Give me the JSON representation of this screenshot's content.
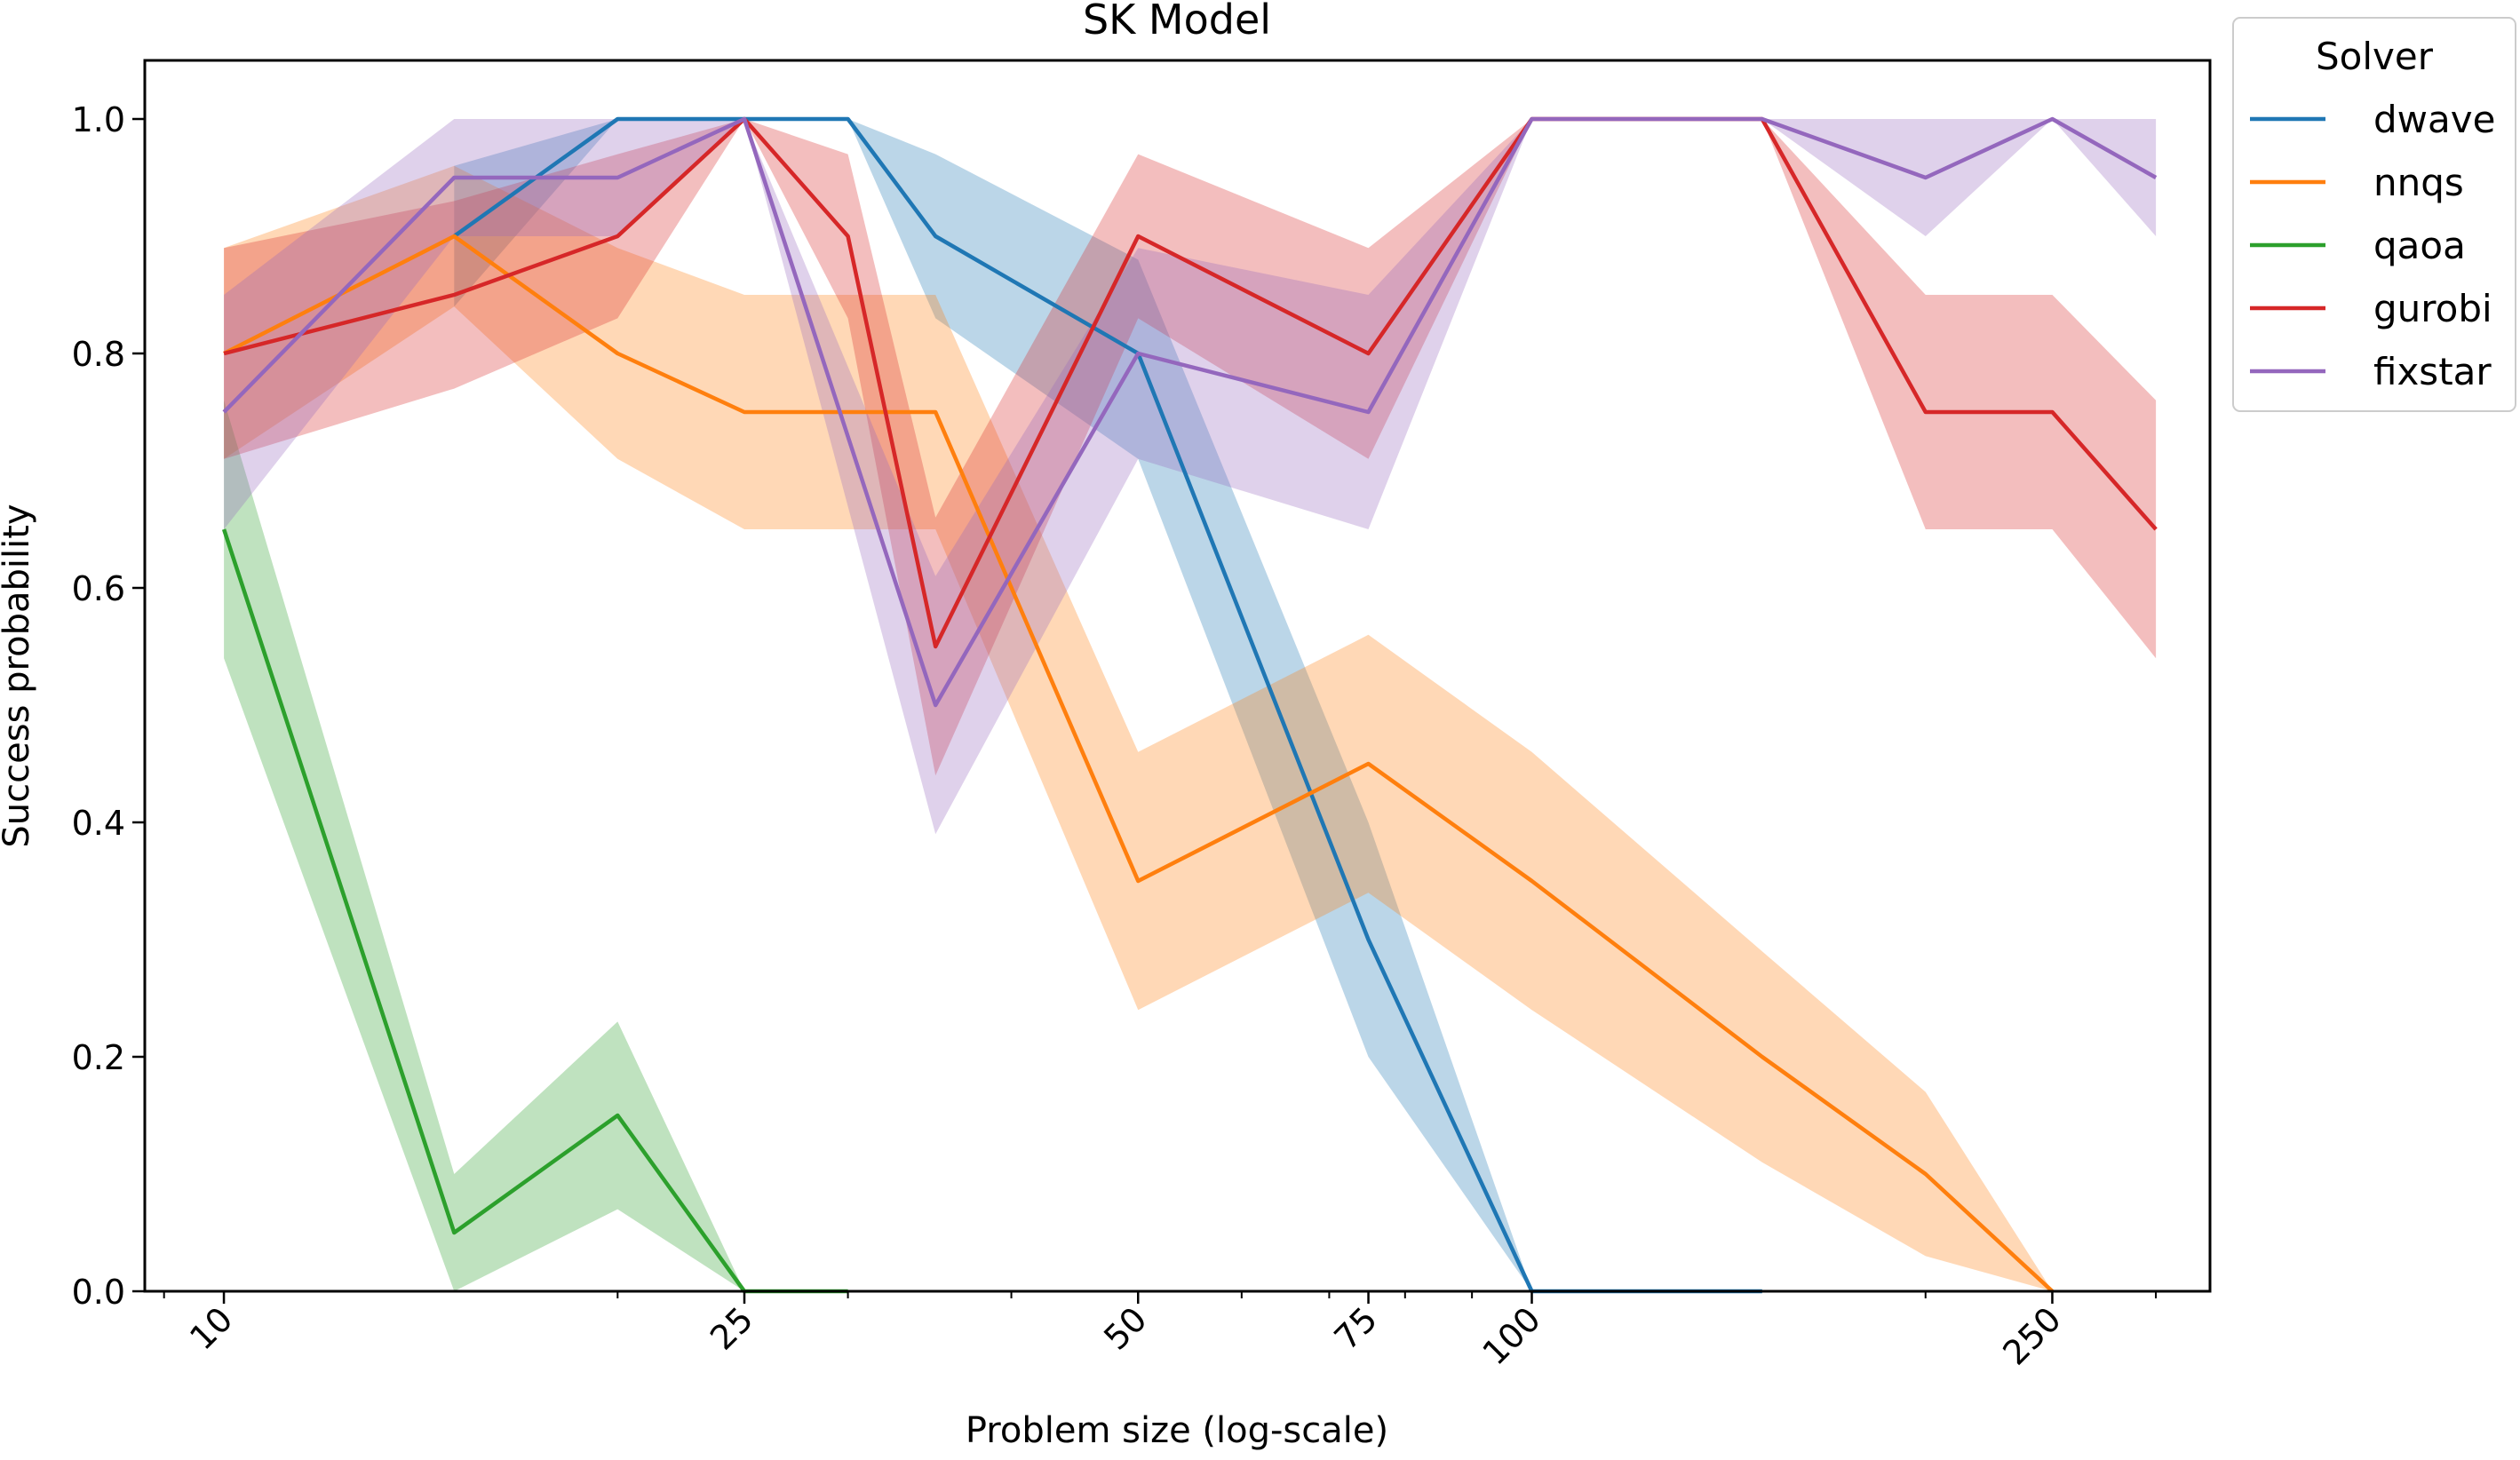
{
  "chart_data": {
    "type": "line",
    "title": "SK Model",
    "xlabel": "Problem size (log-scale)",
    "ylabel": "Success probability",
    "xscale": "log",
    "xlim": [
      8.7,
      330
    ],
    "ylim": [
      0,
      1.05
    ],
    "xticks": [
      10,
      25,
      50,
      75,
      100,
      250
    ],
    "xtick_labels": [
      "10",
      "25",
      "50",
      "75",
      "100",
      "250"
    ],
    "yticks": [
      0.0,
      0.2,
      0.4,
      0.6,
      0.8,
      1.0
    ],
    "ytick_labels": [
      "0.0",
      "0.2",
      "0.4",
      "0.6",
      "0.8",
      "1.0"
    ],
    "grid": false,
    "legend": {
      "title": "Solver",
      "placement": "outside-top-right"
    },
    "series": [
      {
        "name": "dwave",
        "color": "#1f77b4",
        "points": [
          [
            15,
            0.9
          ],
          [
            20,
            1.0
          ],
          [
            25,
            1.0
          ],
          [
            30,
            1.0
          ],
          [
            35,
            0.9
          ],
          [
            50,
            0.8
          ],
          [
            75,
            0.3
          ],
          [
            100,
            0.0
          ],
          [
            150,
            0.0
          ]
        ],
        "lower": [
          [
            15,
            0.84
          ],
          [
            20,
            1.0
          ],
          [
            25,
            1.0
          ],
          [
            30,
            1.0
          ],
          [
            35,
            0.83
          ],
          [
            50,
            0.71
          ],
          [
            75,
            0.2
          ],
          [
            100,
            0.0
          ],
          [
            150,
            0.0
          ]
        ],
        "upper": [
          [
            15,
            0.96
          ],
          [
            20,
            1.0
          ],
          [
            25,
            1.0
          ],
          [
            30,
            1.0
          ],
          [
            35,
            0.97
          ],
          [
            50,
            0.88
          ],
          [
            75,
            0.4
          ],
          [
            100,
            0.0
          ],
          [
            150,
            0.0
          ]
        ]
      },
      {
        "name": "nnqs",
        "color": "#ff7f0e",
        "points": [
          [
            10,
            0.8
          ],
          [
            15,
            0.9
          ],
          [
            20,
            0.8
          ],
          [
            25,
            0.75
          ],
          [
            35,
            0.75
          ],
          [
            50,
            0.35
          ],
          [
            75,
            0.45
          ],
          [
            100,
            0.35
          ],
          [
            150,
            0.2
          ],
          [
            200,
            0.1
          ],
          [
            250,
            0.0
          ]
        ],
        "lower": [
          [
            10,
            0.71
          ],
          [
            15,
            0.84
          ],
          [
            20,
            0.71
          ],
          [
            25,
            0.65
          ],
          [
            35,
            0.65
          ],
          [
            50,
            0.24
          ],
          [
            75,
            0.34
          ],
          [
            100,
            0.24
          ],
          [
            150,
            0.11
          ],
          [
            200,
            0.03
          ],
          [
            250,
            0.0
          ]
        ],
        "upper": [
          [
            10,
            0.89
          ],
          [
            15,
            0.96
          ],
          [
            20,
            0.89
          ],
          [
            25,
            0.85
          ],
          [
            35,
            0.85
          ],
          [
            50,
            0.46
          ],
          [
            75,
            0.56
          ],
          [
            100,
            0.46
          ],
          [
            150,
            0.29
          ],
          [
            200,
            0.17
          ],
          [
            250,
            0.0
          ]
        ]
      },
      {
        "name": "qaoa",
        "color": "#2ca02c",
        "points": [
          [
            10,
            0.65
          ],
          [
            15,
            0.05
          ],
          [
            20,
            0.15
          ],
          [
            25,
            0.0
          ],
          [
            30,
            0.0
          ]
        ],
        "lower": [
          [
            10,
            0.54
          ],
          [
            15,
            0.0
          ],
          [
            20,
            0.07
          ],
          [
            25,
            0.0
          ],
          [
            30,
            0.0
          ]
        ],
        "upper": [
          [
            10,
            0.76
          ],
          [
            15,
            0.1
          ],
          [
            20,
            0.23
          ],
          [
            25,
            0.0
          ],
          [
            30,
            0.0
          ]
        ]
      },
      {
        "name": "gurobi",
        "color": "#d62728",
        "points": [
          [
            10,
            0.8
          ],
          [
            15,
            0.85
          ],
          [
            20,
            0.9
          ],
          [
            25,
            1.0
          ],
          [
            30,
            0.9
          ],
          [
            35,
            0.55
          ],
          [
            50,
            0.9
          ],
          [
            75,
            0.8
          ],
          [
            100,
            1.0
          ],
          [
            150,
            1.0
          ],
          [
            200,
            0.75
          ],
          [
            250,
            0.75
          ],
          [
            300,
            0.65
          ]
        ],
        "lower": [
          [
            10,
            0.71
          ],
          [
            15,
            0.77
          ],
          [
            20,
            0.83
          ],
          [
            25,
            1.0
          ],
          [
            30,
            0.83
          ],
          [
            35,
            0.44
          ],
          [
            50,
            0.83
          ],
          [
            75,
            0.71
          ],
          [
            100,
            1.0
          ],
          [
            150,
            1.0
          ],
          [
            200,
            0.65
          ],
          [
            250,
            0.65
          ],
          [
            300,
            0.54
          ]
        ],
        "upper": [
          [
            10,
            0.89
          ],
          [
            15,
            0.93
          ],
          [
            20,
            0.97
          ],
          [
            25,
            1.0
          ],
          [
            30,
            0.97
          ],
          [
            35,
            0.66
          ],
          [
            50,
            0.97
          ],
          [
            75,
            0.89
          ],
          [
            100,
            1.0
          ],
          [
            150,
            1.0
          ],
          [
            200,
            0.85
          ],
          [
            250,
            0.85
          ],
          [
            300,
            0.76
          ]
        ]
      },
      {
        "name": "fixstar",
        "color": "#9467bd",
        "points": [
          [
            10,
            0.75
          ],
          [
            15,
            0.95
          ],
          [
            20,
            0.95
          ],
          [
            25,
            1.0
          ],
          [
            35,
            0.5
          ],
          [
            50,
            0.8
          ],
          [
            75,
            0.75
          ],
          [
            100,
            1.0
          ],
          [
            150,
            1.0
          ],
          [
            200,
            0.95
          ],
          [
            250,
            1.0
          ],
          [
            300,
            0.95
          ]
        ],
        "lower": [
          [
            10,
            0.65
          ],
          [
            15,
            0.9
          ],
          [
            20,
            0.9
          ],
          [
            25,
            1.0
          ],
          [
            35,
            0.39
          ],
          [
            50,
            0.71
          ],
          [
            75,
            0.65
          ],
          [
            100,
            1.0
          ],
          [
            150,
            1.0
          ],
          [
            200,
            0.9
          ],
          [
            250,
            1.0
          ],
          [
            300,
            0.9
          ]
        ],
        "upper": [
          [
            10,
            0.85
          ],
          [
            15,
            1.0
          ],
          [
            20,
            1.0
          ],
          [
            25,
            1.0
          ],
          [
            35,
            0.61
          ],
          [
            50,
            0.89
          ],
          [
            75,
            0.85
          ],
          [
            100,
            1.0
          ],
          [
            150,
            1.0
          ],
          [
            200,
            1.0
          ],
          [
            250,
            1.0
          ],
          [
            300,
            1.0
          ]
        ]
      }
    ]
  }
}
